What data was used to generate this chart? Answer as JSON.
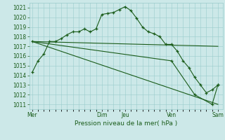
{
  "xlabel": "Pression niveau de la mer( hPa )",
  "ylim": [
    1010.5,
    1021.5
  ],
  "yticks": [
    1011,
    1012,
    1013,
    1014,
    1015,
    1016,
    1017,
    1018,
    1019,
    1020,
    1021
  ],
  "bg_color": "#cce8e8",
  "grid_color": "#99cccc",
  "line_color": "#1a5c1a",
  "series0_x": [
    0,
    6,
    12,
    18,
    24,
    30,
    36,
    42,
    48,
    54,
    60,
    66,
    72,
    78,
    84,
    90,
    96,
    102,
    108,
    114,
    120,
    126,
    132,
    138,
    144,
    150,
    156,
    162,
    168,
    174,
    180,
    186,
    192
  ],
  "series0_y": [
    1014.3,
    1015.5,
    1016.2,
    1017.5,
    1017.5,
    1017.8,
    1018.2,
    1018.5,
    1018.5,
    1018.8,
    1018.5,
    1018.8,
    1020.3,
    1020.4,
    1020.5,
    1020.8,
    1021.1,
    1020.7,
    1019.9,
    1019.0,
    1018.5,
    1018.3,
    1018.0,
    1017.2,
    1017.2,
    1016.5,
    1015.5,
    1014.8,
    1013.8,
    1013.0,
    1012.2,
    1012.5,
    1013.0
  ],
  "series1_x": [
    0,
    192
  ],
  "series1_y": [
    1017.5,
    1017.0
  ],
  "series2_x": [
    0,
    192
  ],
  "series2_y": [
    1017.5,
    1011.0
  ],
  "series3_x": [
    0,
    144,
    168,
    186,
    192
  ],
  "series3_y": [
    1017.5,
    1015.5,
    1012.0,
    1011.0,
    1013.0
  ],
  "x_major_ticks": [
    0,
    72,
    96,
    144,
    192
  ],
  "x_major_labels": [
    "Mer",
    "Dim",
    "Jeu",
    "Ven",
    "Sam"
  ],
  "xlim": [
    -3,
    197
  ]
}
